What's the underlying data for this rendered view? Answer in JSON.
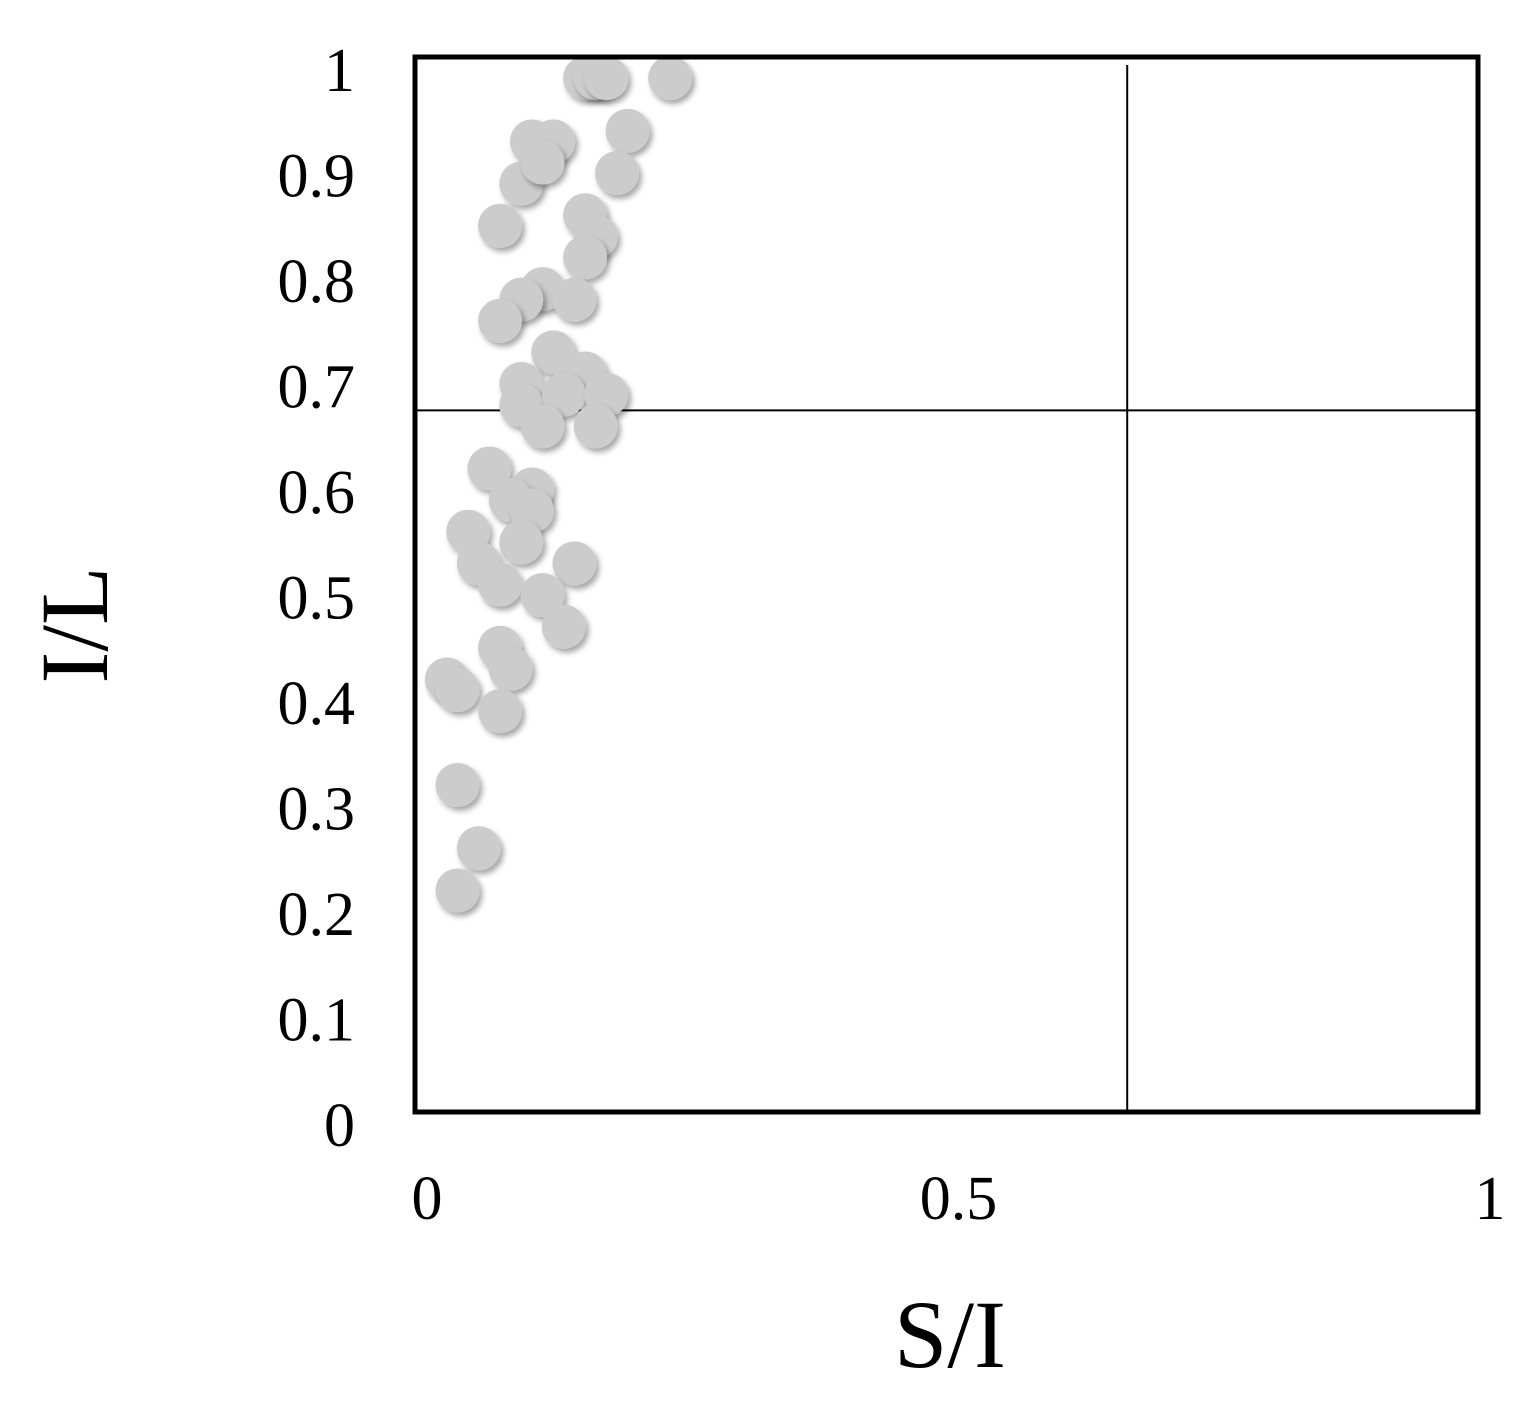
{
  "chart_data": {
    "type": "scatter",
    "x_label": "S/I",
    "y_label": "I/L",
    "x": [
      0.16,
      0.17,
      0.18,
      0.24,
      0.11,
      0.13,
      0.2,
      0.19,
      0.1,
      0.12,
      0.08,
      0.16,
      0.17,
      0.16,
      0.12,
      0.15,
      0.1,
      0.08,
      0.13,
      0.16,
      0.1,
      0.1,
      0.14,
      0.18,
      0.17,
      0.12,
      0.07,
      0.11,
      0.09,
      0.11,
      0.1,
      0.05,
      0.15,
      0.06,
      0.08,
      0.12,
      0.14,
      0.08,
      0.09,
      0.03,
      0.04,
      0.08,
      0.04,
      0.06,
      0.04
    ],
    "values": [
      0.98,
      0.98,
      0.98,
      0.98,
      0.92,
      0.92,
      0.93,
      0.89,
      0.88,
      0.9,
      0.84,
      0.85,
      0.83,
      0.81,
      0.78,
      0.77,
      0.77,
      0.75,
      0.72,
      0.7,
      0.69,
      0.67,
      0.68,
      0.68,
      0.65,
      0.65,
      0.61,
      0.59,
      0.58,
      0.57,
      0.54,
      0.55,
      0.52,
      0.52,
      0.5,
      0.49,
      0.46,
      0.44,
      0.42,
      0.41,
      0.4,
      0.38,
      0.31,
      0.25,
      0.21
    ],
    "color": "#cccccc",
    "xlim": [
      0,
      1
    ],
    "ylim": [
      0,
      1
    ],
    "xticks": [
      0,
      0.5,
      1
    ],
    "yticks": [
      0,
      0.1,
      0.2,
      0.3,
      0.4,
      0.5,
      0.6,
      0.7,
      0.8,
      0.9,
      1
    ],
    "reference_lines": {
      "x": 0.67,
      "y": 0.665
    }
  }
}
